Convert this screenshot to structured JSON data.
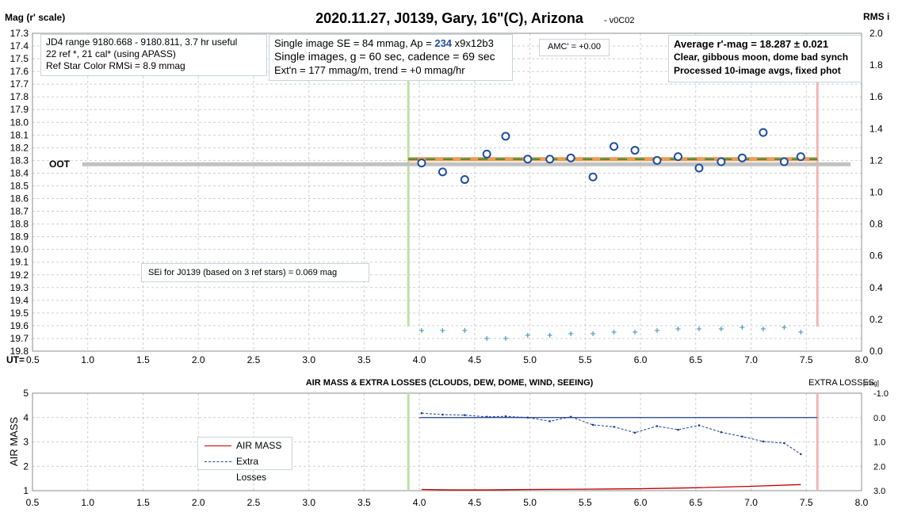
{
  "chart_data": [
    {
      "type": "scatter",
      "title": "2020.11.27, J0139, Gary, 16\"(C), Arizona",
      "title_suffix": "- v0C02",
      "ylabel": "Mag (r' scale)",
      "y2label": "RMS i",
      "xlabel": "UT=",
      "xlim": [
        0.5,
        8.0
      ],
      "ylim": [
        17.3,
        19.8
      ],
      "y_reversed": true,
      "y2lim": [
        0.0,
        2.0
      ],
      "x_ticks": [
        "0.5",
        "1.0",
        "1.5",
        "2.0",
        "2.5",
        "3.0",
        "3.5",
        "4.0",
        "4.5",
        "5.0",
        "5.5",
        "6.0",
        "6.5",
        "7.0",
        "7.5",
        "8.0"
      ],
      "y_ticks": [
        "17.3",
        "17.4",
        "17.5",
        "17.6",
        "17.7",
        "17.8",
        "17.9",
        "18.0",
        "18.1",
        "18.2",
        "18.3",
        "18.4",
        "18.5",
        "18.6",
        "18.7",
        "18.8",
        "18.9",
        "19.0",
        "19.1",
        "19.2",
        "19.3",
        "19.4",
        "19.5",
        "19.6",
        "19.7",
        "19.8"
      ],
      "y2_ticks": [
        "2.0",
        "1.8",
        "1.6",
        "1.4",
        "1.2",
        "1.0",
        "0.8",
        "0.6",
        "0.4",
        "0.2",
        "0.0"
      ],
      "grid": true,
      "series": [
        {
          "kind": "magnitude",
          "marker": "open-circle",
          "x": [
            4.02,
            4.21,
            4.41,
            4.61,
            4.78,
            4.98,
            5.18,
            5.37,
            5.57,
            5.76,
            5.95,
            6.15,
            6.34,
            6.53,
            6.73,
            6.92,
            7.11,
            7.3,
            7.45
          ],
          "y": [
            18.32,
            18.39,
            18.45,
            18.25,
            18.11,
            18.29,
            18.29,
            18.28,
            18.43,
            18.19,
            18.22,
            18.3,
            18.27,
            18.36,
            18.31,
            18.28,
            18.08,
            18.31,
            18.27
          ]
        },
        {
          "kind": "rms",
          "marker": "plus",
          "x": [
            4.02,
            4.21,
            4.41,
            4.61,
            4.78,
            4.98,
            5.18,
            5.37,
            5.57,
            5.76,
            5.95,
            6.15,
            6.34,
            6.53,
            6.73,
            6.92,
            7.11,
            7.3,
            7.45
          ],
          "y2": [
            0.13,
            0.13,
            0.13,
            0.08,
            0.08,
            0.1,
            0.1,
            0.11,
            0.11,
            0.12,
            0.12,
            0.13,
            0.14,
            0.14,
            0.14,
            0.15,
            0.14,
            0.15,
            0.12
          ]
        }
      ],
      "fit_line": {
        "x": [
          3.9,
          7.6
        ],
        "y": 18.29,
        "color": "#ee9a55",
        "dash_color": "#5a8a3c"
      },
      "oot": {
        "label": "OOT",
        "x": [
          0.95,
          7.9
        ],
        "y": 18.33,
        "color": "#c2c2c2"
      },
      "ingress_line": {
        "x": 3.9,
        "color": "#bfe0a6"
      },
      "egress_line": {
        "x": 7.6,
        "color": "#f2b5b5"
      },
      "marker_color": "#1f4e9c",
      "rms_color": "#4a9bbf",
      "annotations": {
        "info1": [
          "JD4 range 9180.668 - 9180.811, 3.7 hr useful",
          " 22 ref *, 21 cal* (using APASS)",
          "Ref Star Color RMSi = 8.9 mmag"
        ],
        "info2_line1_pre": "Single image SE = 84 mmag, Ap = ",
        "info2_ap": "234",
        "info2_line1_post": " x9x12b3",
        "info2_line2": "Single images, g = 60 sec, cadence = 69 sec",
        "info2_line3": "Ext'n = 177 mmag/m, trend = +0 mmag/hr",
        "amc": "AMC' = +0.00",
        "avg_lines": [
          "Average r'-mag =  18.287 ± 0.021",
          "Clear, gibbous moon, dome bad synch",
          "Processed 10-image avgs, fixed phot"
        ],
        "sei": "SEi for J0139 (based on 3 ref stars) = 0.069 mag"
      }
    },
    {
      "type": "line",
      "title": "AIR MASS & EXTRA LOSSES (CLOUDS, DEW, DOME, WIND, SEEING)",
      "ylabel": "AIR MASS",
      "y2label": "EXTRA LOSSES",
      "y2label_unit": "[mag]",
      "xlim": [
        0.5,
        8.0
      ],
      "ylim": [
        1,
        5
      ],
      "y2lim": [
        -1.0,
        3.0
      ],
      "y2_reversed": true,
      "x_ticks": [
        "0.5",
        "1.0",
        "1.5",
        "2.0",
        "2.5",
        "3.0",
        "3.5",
        "4.0",
        "4.5",
        "5.0",
        "5.5",
        "6.0",
        "6.5",
        "7.0",
        "7.5",
        "8.0"
      ],
      "y_ticks": [
        "5",
        "4",
        "3",
        "2",
        "1"
      ],
      "y2_ticks": [
        "-1.0",
        "0.0",
        "1.0",
        "2.0",
        "3.0"
      ],
      "grid": true,
      "legend": {
        "position": "center-left",
        "entries": [
          "AIR MASS",
          "Extra Losses"
        ]
      },
      "series": [
        {
          "name": "AIR MASS",
          "color": "#c00000",
          "x": [
            4.02,
            4.3,
            4.6,
            5.0,
            5.5,
            6.0,
            6.5,
            7.0,
            7.45
          ],
          "y": [
            1.05,
            1.03,
            1.03,
            1.05,
            1.06,
            1.08,
            1.12,
            1.18,
            1.25
          ]
        },
        {
          "name": "Extra Losses",
          "color": "#1f3f8f",
          "dashed": true,
          "x": [
            4.02,
            4.21,
            4.41,
            4.61,
            4.78,
            4.98,
            5.18,
            5.37,
            5.57,
            5.76,
            5.95,
            6.15,
            6.34,
            6.53,
            6.73,
            6.92,
            7.11,
            7.3,
            7.45
          ],
          "y2": [
            -0.18,
            -0.12,
            -0.1,
            -0.03,
            -0.05,
            0.0,
            0.15,
            -0.03,
            0.3,
            0.38,
            0.62,
            0.35,
            0.5,
            0.32,
            0.6,
            0.78,
            0.98,
            1.05,
            1.5
          ]
        }
      ],
      "zero_line": {
        "x": [
          4.0,
          7.6
        ],
        "y2": 0.0,
        "color": "#1f3f8f"
      },
      "ingress_line": {
        "x": 3.9,
        "color": "#bfe0a6"
      },
      "egress_line": {
        "x": 7.6,
        "color": "#f2b5b5"
      }
    }
  ]
}
